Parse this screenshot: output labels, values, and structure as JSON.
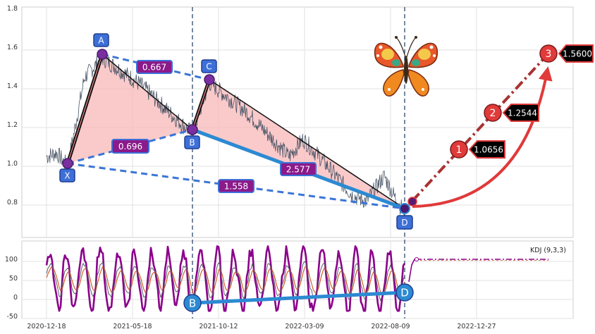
{
  "chart_data": {
    "type": "line",
    "title": "",
    "subtitle": "",
    "price_axis": {
      "ylim": [
        0.62,
        1.8
      ],
      "ticks": [
        "0.8",
        "1.0",
        "1.2",
        "1.4",
        "1.6",
        "1.8"
      ]
    },
    "kdj_axis": {
      "ylim": [
        -55,
        142
      ],
      "ticks": [
        "-50",
        "0",
        "50",
        "100"
      ]
    },
    "date_ticks": [
      "2020-12-18",
      "2021-05-18",
      "2021-10-12",
      "2022-03-09",
      "2022-08-09",
      "2022-12-27"
    ],
    "pattern_points": [
      {
        "label": "X",
        "date": "2020-12-21",
        "value": 1.0
      },
      {
        "label": "A",
        "date": "2021-02-18",
        "value": 1.56
      },
      {
        "label": "B",
        "date": "2021-08-10",
        "value": 1.17
      },
      {
        "label": "C",
        "date": "2021-09-05",
        "value": 1.43
      },
      {
        "label": "D",
        "date": "2022-08-09",
        "value": 0.76
      }
    ],
    "ratios": [
      {
        "label": "0.667",
        "between": [
          "A",
          "C"
        ]
      },
      {
        "label": "0.696",
        "between": [
          "X",
          "B"
        ]
      },
      {
        "label": "2.577",
        "between": [
          "B",
          "D"
        ]
      },
      {
        "label": "1.558",
        "between": [
          "X",
          "D"
        ]
      }
    ],
    "targets": [
      {
        "label": "1",
        "value": 1.0656,
        "value_text": "1.0656"
      },
      {
        "label": "2",
        "value": 1.2544,
        "value_text": "1.2544"
      },
      {
        "label": "3",
        "value": 1.56,
        "value_text": "1.5600"
      }
    ],
    "vertical_markers": [
      "2021-08-10",
      "2022-08-09"
    ],
    "kdj_legend": "KDJ (9,3,3)",
    "kdj_divergence": [
      {
        "label": "B",
        "value": -15
      },
      {
        "label": "D",
        "value": 12
      }
    ],
    "grid": true
  },
  "colors": {
    "price_line": "#4a5566",
    "pattern_fill": "#f8b8b8",
    "leg_dashed": "#3a75d6",
    "leg_solid_blue": "#2c8ad2",
    "leg_black": "#111111",
    "ratio_box": "#8b1a8b",
    "point_box": "#3d6fd8",
    "target_red": "#e03a3a",
    "kdj_k": "#8b008b",
    "kdj_d": "#d0521e",
    "kdj_j": "#8b008b"
  },
  "icons": {
    "butterfly": "butterfly-icon"
  }
}
